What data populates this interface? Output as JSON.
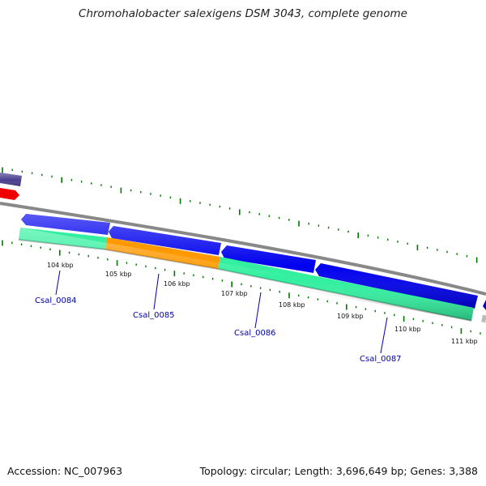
{
  "title": "Chromohalobacter salexigens DSM 3043, complete genome",
  "footer": {
    "accession": "Accession: NC_007963",
    "stats": "Topology: circular; Length: 3,696,649 bp; Genes: 3,388"
  },
  "ruler": {
    "unit": "kbp",
    "ticks": [
      "104 kbp",
      "105 kbp",
      "106 kbp",
      "107 kbp",
      "108 kbp",
      "109 kbp",
      "110 kbp",
      "111 kbp"
    ]
  },
  "genes": [
    {
      "label": "Csal_0084"
    },
    {
      "label": "Csal_0085"
    },
    {
      "label": "Csal_0086"
    },
    {
      "label": "Csal_0087"
    }
  ],
  "colors": {
    "cds_forward": "#0000ee",
    "cds_left_edge": "#4a3f8f",
    "cds_red": "#ee0000",
    "gene_green": "#33f0a0",
    "gene_orange": "#ff9900",
    "backbone": "#888888",
    "tick_green": "#007700",
    "label_blue": "#0000aa"
  }
}
